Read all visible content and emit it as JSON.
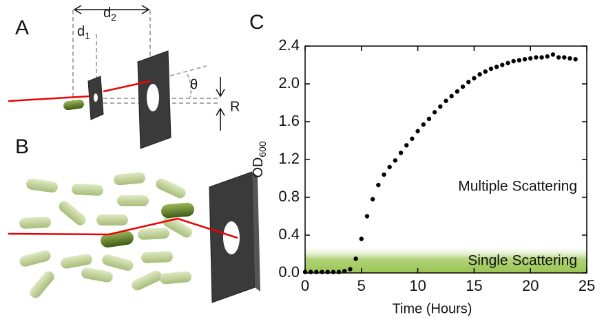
{
  "labels": {
    "panel_a": "A",
    "panel_b": "B",
    "panel_c": "C",
    "d1": "d",
    "d1_sub": "1",
    "d2": "d",
    "d2_sub": "2",
    "theta": "θ",
    "r": "R"
  },
  "chart_data": {
    "type": "scatter",
    "xlabel": "Time (Hours)",
    "ylabel": "OD",
    "ylabel_sub": "600",
    "annotations": [
      "Multiple Scattering",
      "Single Scattering"
    ],
    "color": "#000000",
    "band_color": "#8fbf3f",
    "x": [
      0,
      0.5,
      1,
      1.5,
      2,
      2.5,
      3,
      3.5,
      4,
      4.5,
      5,
      5.5,
      6,
      6.5,
      7,
      7.5,
      8,
      8.5,
      9,
      9.5,
      10,
      10.5,
      11,
      11.5,
      12,
      12.5,
      13,
      13.5,
      14,
      14.5,
      15,
      15.5,
      16,
      16.5,
      17,
      17.5,
      18,
      18.5,
      19,
      19.5,
      20,
      20.5,
      21,
      21.5,
      22,
      22.5,
      23,
      23.5,
      24
    ],
    "values": [
      0.01,
      0.01,
      0.01,
      0.01,
      0.01,
      0.01,
      0.01,
      0.02,
      0.04,
      0.15,
      0.36,
      0.6,
      0.78,
      0.93,
      1.04,
      1.12,
      1.19,
      1.27,
      1.35,
      1.42,
      1.5,
      1.57,
      1.63,
      1.7,
      1.76,
      1.82,
      1.87,
      1.92,
      1.97,
      2.02,
      2.06,
      2.1,
      2.13,
      2.16,
      2.18,
      2.2,
      2.22,
      2.24,
      2.25,
      2.26,
      2.27,
      2.28,
      2.28,
      2.29,
      2.31,
      2.28,
      2.28,
      2.27,
      2.26
    ],
    "xlim": [
      0,
      25
    ],
    "xticks": [
      0,
      5,
      10,
      15,
      20,
      25
    ],
    "ylim": [
      0,
      2.4
    ],
    "yticks": [
      {
        "value": 0,
        "label": "0.0"
      },
      0.4,
      0.8,
      1.2,
      1.6,
      {
        "value": 2,
        "label": "2.0"
      },
      2.4
    ]
  }
}
